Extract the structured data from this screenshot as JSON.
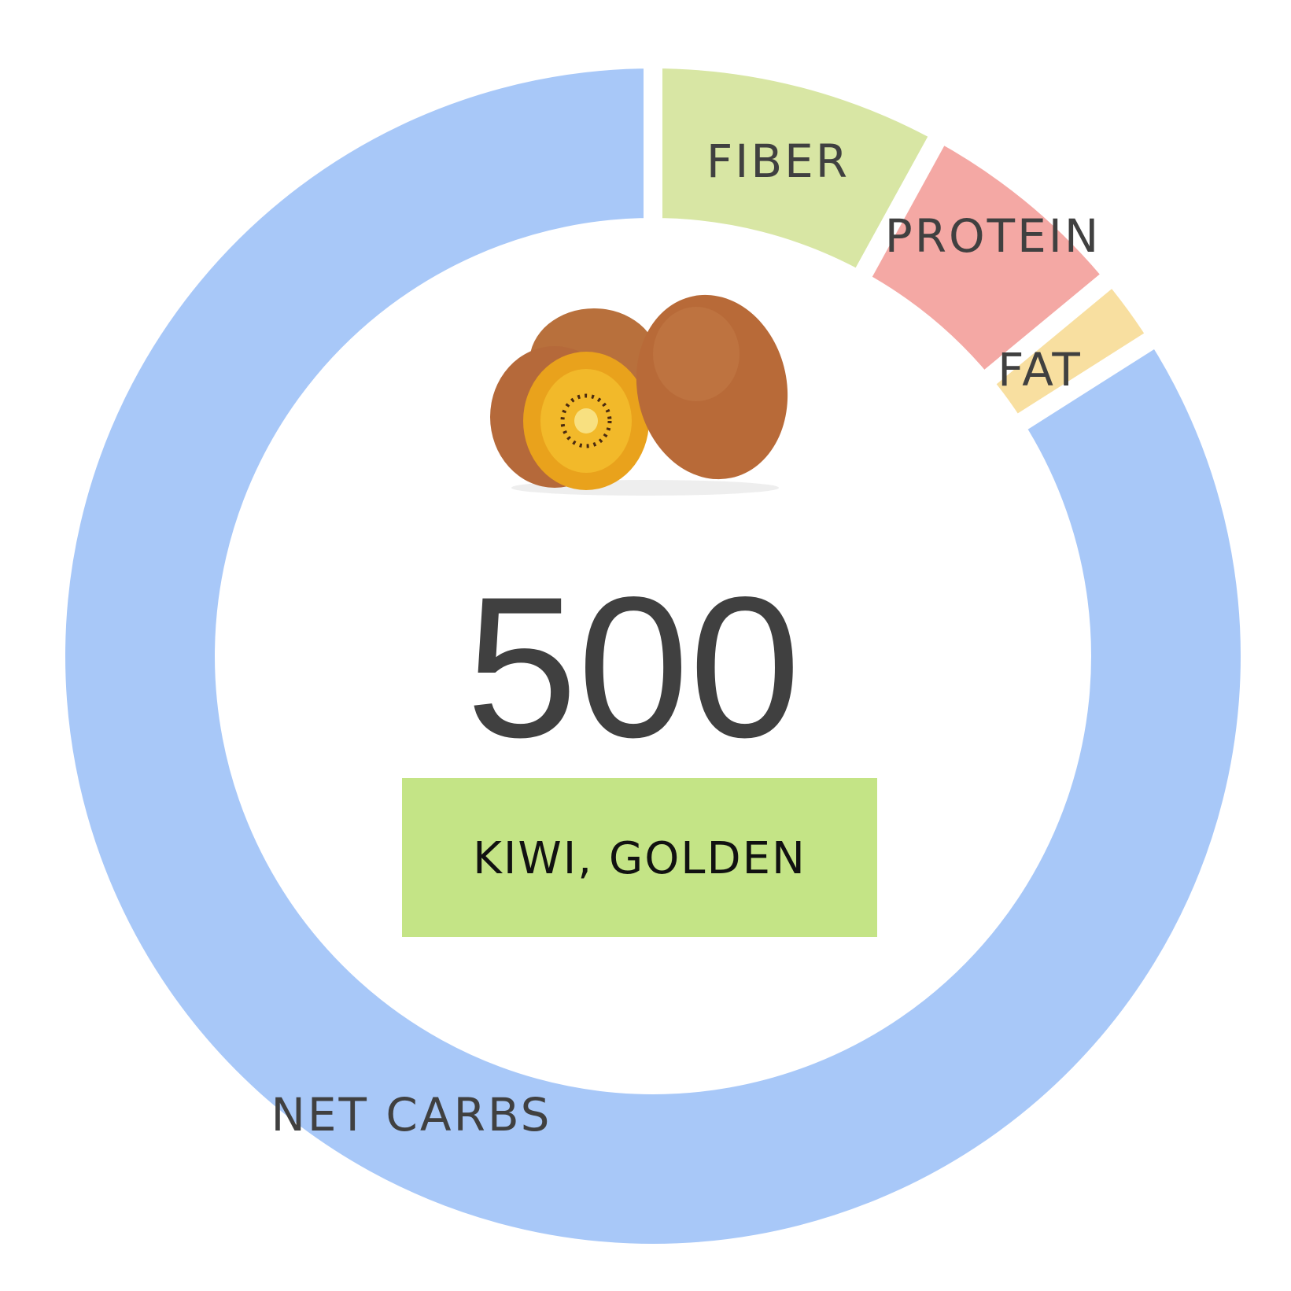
{
  "chart_data": {
    "type": "pie",
    "subtype": "donut",
    "categories": [
      "FIBER",
      "PROTEIN",
      "FAT",
      "NET CARBS"
    ],
    "values_percent": [
      8,
      6,
      2,
      84
    ],
    "colors": [
      "#d8e6a4",
      "#f4a8a4",
      "#f8dfa0",
      "#a8c8f8"
    ],
    "center_value": "500",
    "center_label": "KIWI, GOLDEN",
    "center_label_color": "#c4e486",
    "center_image": "golden-kiwi-photo"
  }
}
